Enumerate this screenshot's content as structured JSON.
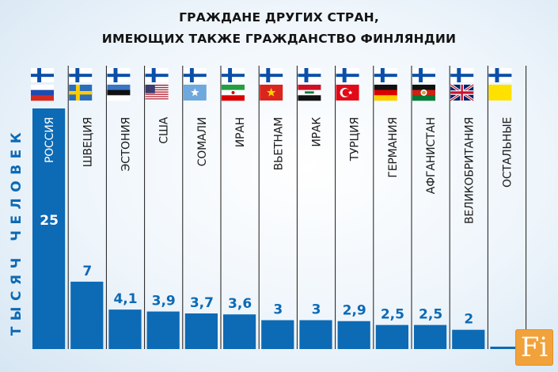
{
  "title_lines": [
    "ГРАЖДАНЕ ДРУГИХ СТРАН,",
    "ИМЕЮЩИХ ТАКЖЕ ГРАЖДАНСТВО ФИНЛЯНДИИ"
  ],
  "logo_text": "Fi",
  "colors": {
    "bar": "#0d6ab5",
    "divider": "#1a1a1a",
    "finland_blue": "#0a4fa8"
  },
  "chart_data": {
    "type": "bar",
    "title": "ГРАЖДАНЕ ДРУГИХ СТРАН, ИМЕЮЩИХ ТАКЖЕ ГРАЖДАНСТВО ФИНЛЯНДИИ",
    "ylabel": "ТЫСЯЧ ЧЕЛОВЕК",
    "ylim": [
      0,
      25
    ],
    "grid": false,
    "categories": [
      "РОССИЯ",
      "ШВЕЦИЯ",
      "ЭСТОНИЯ",
      "США",
      "СОМАЛИ",
      "ИРАН",
      "ВЬЕТНАМ",
      "ИРАК",
      "ТУРЦИЯ",
      "ГЕРМАНИЯ",
      "АФГАНИСТАН",
      "ВЕЛИКОБРИТАНИЯ",
      "ОСТАЛЬНЫЕ"
    ],
    "values": [
      25,
      7,
      4.1,
      3.9,
      3.7,
      3.6,
      3,
      3,
      2.9,
      2.5,
      2.5,
      2,
      0.25
    ],
    "data_labels": [
      "25",
      "7",
      "4,1",
      "3,9",
      "3,7",
      "3,6",
      "3",
      "3",
      "2,9",
      "2,5",
      "2,5",
      "2",
      ""
    ],
    "flags": [
      "russia-flag",
      "sweden-flag",
      "estonia-flag",
      "usa-flag",
      "somalia-flag",
      "iran-flag",
      "vietnam-flag",
      "iraq-flag",
      "turkey-flag",
      "germany-flag",
      "afghanistan-flag",
      "uk-flag",
      "other-flag"
    ]
  }
}
